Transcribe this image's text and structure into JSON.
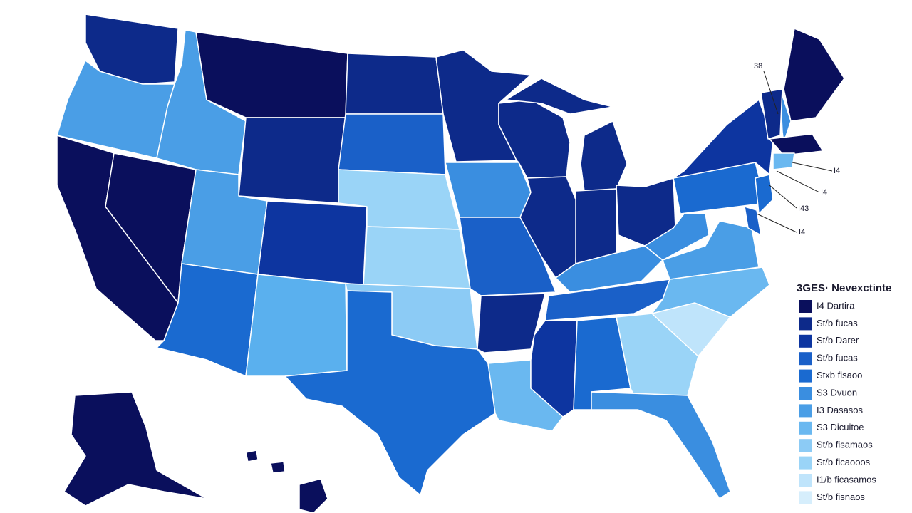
{
  "callouts": [
    "38",
    "I4",
    "I4",
    "I43",
    "I4"
  ],
  "legend": {
    "title": "3GES· Nevexctinte",
    "items": [
      "I4 Dartira",
      "St/b fucas",
      "St/b Darer",
      "St/b fucas",
      "Stxb fisaoo",
      "S3 Dvuon",
      "I3 Dasasos",
      "S3 Dicuitoe",
      "St/b fisamaos",
      "St/b ficaooos",
      "I1/b ficasamos",
      "St/b fisnaos"
    ]
  }
}
